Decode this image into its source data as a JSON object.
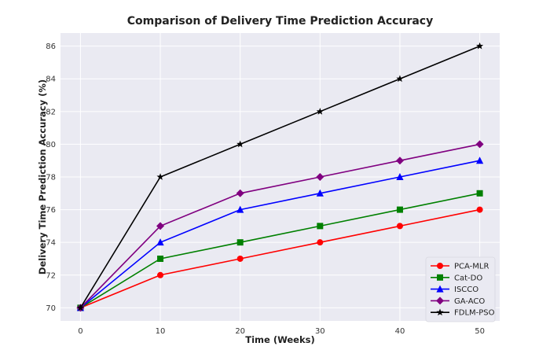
{
  "chart_data": {
    "type": "line",
    "title": "Comparison of Delivery Time Prediction Accuracy",
    "xlabel": "Time (Weeks)",
    "ylabel": "Delivery Time Prediction Accuracy (%)",
    "x": [
      0,
      10,
      20,
      30,
      40,
      50
    ],
    "xlim": [
      -2.5,
      52.5
    ],
    "ylim": [
      69.2,
      86.8
    ],
    "xticks": [
      0,
      10,
      20,
      30,
      40,
      50
    ],
    "yticks": [
      70,
      72,
      74,
      76,
      78,
      80,
      82,
      84,
      86
    ],
    "grid": true,
    "legend_position": "bottom-right",
    "series": [
      {
        "name": "PCA-MLR",
        "color": "#ff0000",
        "marker": "circle",
        "values": [
          70,
          72,
          73,
          74,
          75,
          76
        ]
      },
      {
        "name": "Cat-DO",
        "color": "#008000",
        "marker": "square",
        "values": [
          70,
          73,
          74,
          75,
          76,
          77
        ]
      },
      {
        "name": "ISCCO",
        "color": "#0000ff",
        "marker": "triangle",
        "values": [
          70,
          74,
          76,
          77,
          78,
          79
        ]
      },
      {
        "name": "GA-ACO",
        "color": "#800080",
        "marker": "diamond",
        "values": [
          70,
          75,
          77,
          78,
          79,
          80
        ]
      },
      {
        "name": "FDLM-PSO",
        "color": "#000000",
        "marker": "star",
        "values": [
          70,
          78,
          80,
          82,
          84,
          86
        ]
      }
    ]
  }
}
